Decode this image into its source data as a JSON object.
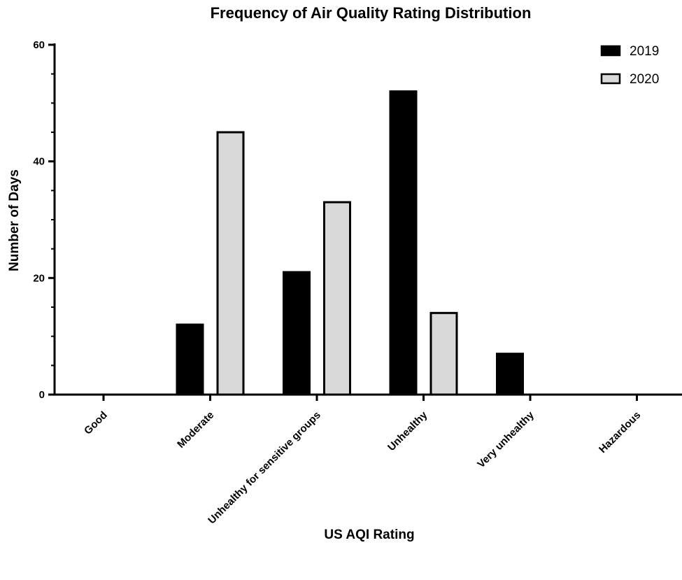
{
  "chart_data": {
    "type": "bar",
    "title": "Frequency of Air Quality Rating Distribution",
    "xlabel": "US AQI Rating",
    "ylabel": "Number of Days",
    "categories": [
      "Good",
      "Moderate",
      "Unhealthy for sensitive groups",
      "Unhealthy",
      "Very unhealthy",
      "Hazardous"
    ],
    "series": [
      {
        "name": "2019",
        "values": [
          0,
          12,
          21,
          52,
          7,
          0
        ],
        "color": "#000000"
      },
      {
        "name": "2020",
        "values": [
          0,
          45,
          33,
          14,
          0,
          0
        ],
        "color": "#d9d9d9"
      }
    ],
    "ylim": [
      0,
      60
    ],
    "yticks": [
      0,
      20,
      40,
      60
    ],
    "grid": false,
    "legend_position": "top-right"
  }
}
